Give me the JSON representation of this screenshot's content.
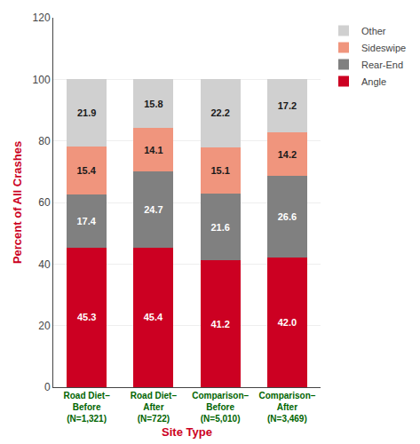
{
  "chart_data": {
    "type": "bar",
    "stacked": true,
    "categories": [
      "Road Diet–\nBefore\n(N=1,321)",
      "Road Diet–\nAfter\n(N=722)",
      "Comparison–\nBefore\n(N=5,010)",
      "Comparison–\nAfter\n(N=3,469)"
    ],
    "series": [
      {
        "name": "Angle",
        "color": "#cc0022",
        "values": [
          45.3,
          45.4,
          41.2,
          42.0
        ],
        "value_labels": [
          "45.3",
          "45.4",
          "41.2",
          "42.0"
        ]
      },
      {
        "name": "Rear-End",
        "color": "#808080",
        "values": [
          17.4,
          24.7,
          21.6,
          26.6
        ]
      },
      {
        "name": "Sideswipe",
        "color": "#f0957d",
        "values": [
          15.4,
          14.1,
          15.1,
          14.2
        ]
      },
      {
        "name": "Other",
        "color": "#d0d0d0",
        "values": [
          21.9,
          15.8,
          22.2,
          17.2
        ]
      }
    ],
    "xlabel": "Site Type",
    "ylabel": "Percent of All Crashes",
    "ylim": [
      0,
      120
    ],
    "yticks": [
      0,
      20,
      40,
      60,
      80,
      100,
      120
    ],
    "grid": true,
    "legend": "upper right",
    "data_labels": true
  }
}
